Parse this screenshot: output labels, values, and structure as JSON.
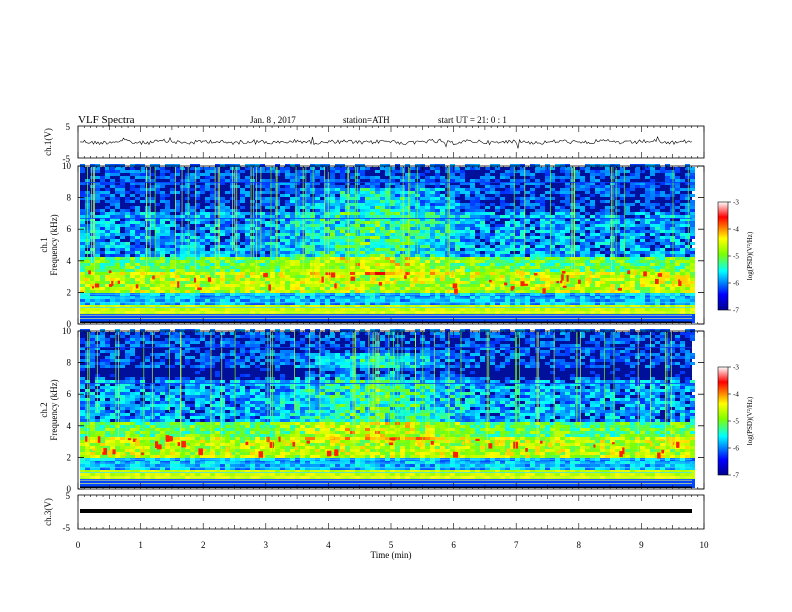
{
  "header": {
    "title": "VLF Spectra",
    "date": "Jan. 8 , 2017",
    "station": "station=ATH",
    "start": "start UT = 21: 0 : 1"
  },
  "chart_data": [
    {
      "type": "line",
      "panel": "ch1-waveform",
      "ylabel": "ch.1(V)",
      "ylim": [
        -5,
        5
      ],
      "yticks": [
        "5",
        "-5"
      ],
      "xlim": [
        0,
        10
      ],
      "description_values": {
        "mean": 0,
        "amplitude_approx": 1
      }
    },
    {
      "type": "heatmap",
      "panel": "ch1-spectrogram",
      "ylabel": "ch.1\nFrequency (kHz)",
      "ylabel_lines": [
        "ch.1",
        "Frequency (kHz)"
      ],
      "ylim": [
        0,
        10
      ],
      "yticks": [
        "0",
        "2",
        "4",
        "6",
        "8",
        "10"
      ],
      "xlim": [
        0,
        10
      ],
      "colorbar": {
        "label": "log(PSD)(V²/Hz)",
        "range": [
          -7,
          -3
        ],
        "ticks": [
          "-3",
          "-4",
          "-5",
          "-6",
          "-7"
        ]
      }
    },
    {
      "type": "heatmap",
      "panel": "ch2-spectrogram",
      "ylabel": "ch.2\nFrequency (kHz)",
      "ylabel_lines": [
        "ch.2",
        "Frequency (kHz)"
      ],
      "ylim": [
        0,
        10
      ],
      "yticks": [
        "0",
        "2",
        "4",
        "6",
        "8",
        "10"
      ],
      "xlim": [
        0,
        10
      ],
      "colorbar": {
        "label": "log(PSD)(V²/Hz)",
        "range": [
          -7,
          -3
        ],
        "ticks": [
          "-3",
          "-4",
          "-5",
          "-6",
          "-7"
        ]
      }
    },
    {
      "type": "line",
      "panel": "ch3-waveform",
      "ylabel": "ch.3(V)",
      "ylim": [
        -5,
        5
      ],
      "yticks": [
        "5",
        "-5"
      ],
      "xlim": [
        0,
        10
      ],
      "description_values": {
        "level": 0
      }
    }
  ],
  "xaxis": {
    "label": "Time (min)",
    "ticks": [
      "0",
      "1",
      "2",
      "3",
      "4",
      "5",
      "6",
      "7",
      "8",
      "9",
      "10"
    ]
  },
  "colors": {
    "jet": [
      "#00008f",
      "#0000ff",
      "#00ffff",
      "#7fff00",
      "#ffff00",
      "#ff0000",
      "#8f0000"
    ]
  }
}
